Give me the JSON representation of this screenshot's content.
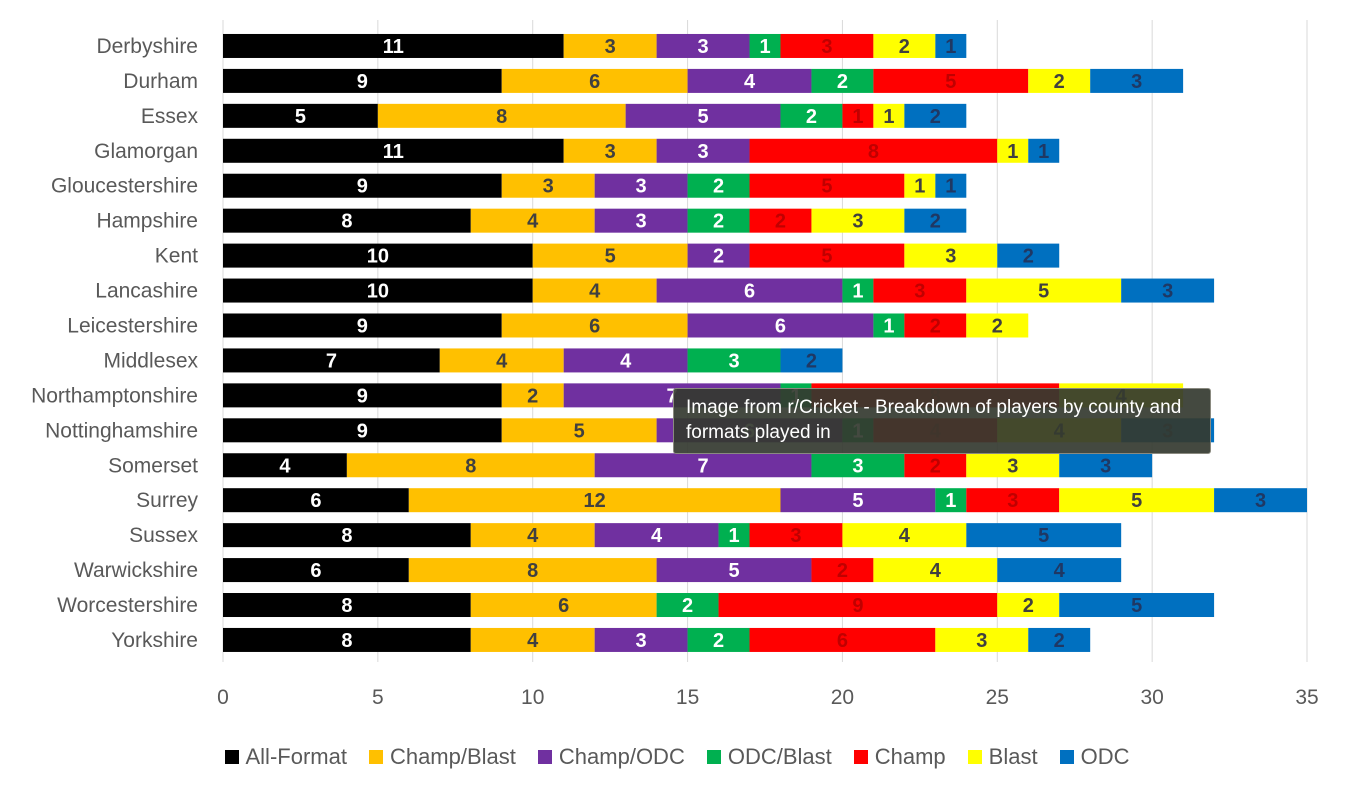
{
  "chart_data": {
    "type": "bar",
    "orientation": "horizontal",
    "stacked": true,
    "categories": [
      "Derbyshire",
      "Durham",
      "Essex",
      "Glamorgan",
      "Gloucestershire",
      "Hampshire",
      "Kent",
      "Lancashire",
      "Leicestershire",
      "Middlesex",
      "Northamptonshire",
      "Nottinghamshire",
      "Somerset",
      "Surrey",
      "Sussex",
      "Warwickshire",
      "Worcestershire",
      "Yorkshire"
    ],
    "series": [
      {
        "name": "All-Format",
        "color": "#000000",
        "label_color": "#ffffff",
        "values": [
          11,
          9,
          5,
          11,
          9,
          8,
          10,
          10,
          9,
          7,
          9,
          9,
          4,
          6,
          8,
          6,
          8,
          8
        ]
      },
      {
        "name": "Champ/Blast",
        "color": "#ffc000",
        "label_color": "#404040",
        "values": [
          3,
          6,
          8,
          3,
          3,
          4,
          5,
          4,
          6,
          4,
          2,
          5,
          8,
          12,
          4,
          8,
          6,
          4
        ]
      },
      {
        "name": "Champ/ODC",
        "color": "#7030a0",
        "label_color": "#ffffff",
        "values": [
          3,
          4,
          5,
          3,
          3,
          3,
          2,
          6,
          6,
          4,
          7,
          6,
          7,
          5,
          4,
          5,
          0,
          3
        ]
      },
      {
        "name": "ODC/Blast",
        "color": "#00b050",
        "label_color": "#ffffff",
        "values": [
          1,
          2,
          2,
          0,
          2,
          2,
          0,
          1,
          1,
          3,
          1,
          1,
          3,
          1,
          1,
          0,
          2,
          2
        ]
      },
      {
        "name": "Champ",
        "color": "#ff0000",
        "label_color": "#c00000",
        "values": [
          3,
          5,
          1,
          8,
          5,
          2,
          5,
          3,
          2,
          0,
          8,
          4,
          2,
          3,
          3,
          2,
          9,
          6
        ]
      },
      {
        "name": "Blast",
        "color": "#ffff00",
        "label_color": "#404040",
        "values": [
          2,
          2,
          1,
          1,
          1,
          3,
          3,
          5,
          2,
          0,
          4,
          4,
          3,
          5,
          4,
          4,
          2,
          3
        ]
      },
      {
        "name": "ODC",
        "color": "#0070c0",
        "label_color": "#1f3864",
        "values": [
          1,
          3,
          2,
          1,
          1,
          2,
          2,
          3,
          0,
          2,
          0,
          3,
          3,
          3,
          5,
          4,
          5,
          2
        ]
      }
    ],
    "xlim": [
      0,
      35
    ],
    "xticks": [
      "0",
      "5",
      "10",
      "15",
      "20",
      "25",
      "30",
      "35"
    ],
    "grid": "vertical",
    "legend_position": "bottom",
    "title": "",
    "xlabel": "",
    "ylabel": ""
  },
  "tooltip": {
    "text": "Image from r/Cricket - Breakdown of players by county and formats played in"
  }
}
